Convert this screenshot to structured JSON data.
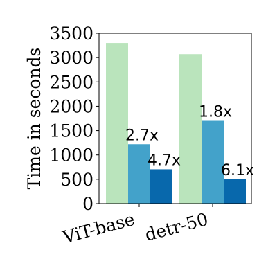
{
  "chart_data": {
    "type": "bar",
    "categories": [
      "ViT-base",
      "detr-50"
    ],
    "series": [
      {
        "values": [
          3300,
          3070
        ],
        "color": "#bae4bc",
        "labels": [
          "",
          ""
        ]
      },
      {
        "values": [
          1220,
          1700
        ],
        "color": "#43a2ca",
        "labels": [
          "2.7x",
          "1.8x"
        ]
      },
      {
        "values": [
          705,
          500
        ],
        "color": "#0868ac",
        "labels": [
          "4.7x",
          "6.1x"
        ]
      }
    ],
    "ylabel": "Time in seconds",
    "ylim": [
      0,
      3500
    ],
    "yticks": [
      "0",
      "500",
      "1000",
      "1500",
      "2000",
      "2500",
      "3000",
      "3500"
    ],
    "grid": false,
    "legend": "none"
  }
}
